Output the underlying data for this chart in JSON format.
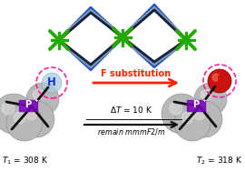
{
  "background_color": "#ffffff",
  "arrow_color_red": "#ff2200",
  "arrow_color_black": "#111111",
  "dashed_circle_color": "#ff1493",
  "h_label_color": "#1133cc",
  "f_label_color": "#cc1100",
  "p_label_color": "#6600aa",
  "t1_text": "$T_1$ = 308 K",
  "t2_text": "$T_2$ = 318 K",
  "f_substitution_text": "F substitution",
  "delta_t_text": "$\\Delta T$ = 10 K",
  "remain_text": "remain $mmmF2/m$",
  "sphere_color_gray": "#b8b8b8",
  "sphere_color_red": "#cc1111",
  "sphere_color_lightblue": "#aaccdd",
  "bond_color": "#111111",
  "crystal_blue": "#2255cc",
  "crystal_green": "#22aa00",
  "crystal_yellow": "#ddbb00",
  "crystal_dark": "#112244",
  "crystal_gray": "#8899aa",
  "figsize": [
    2.7,
    1.89
  ],
  "dpi": 100
}
